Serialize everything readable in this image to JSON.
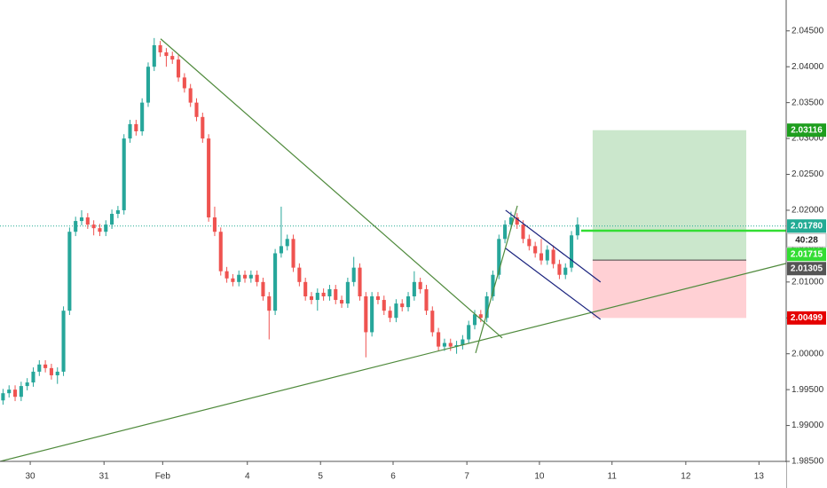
{
  "chart_data": {
    "type": "candlestick",
    "up_color": "#26a69a",
    "down_color": "#ef5350",
    "grid": false,
    "xlim": [
      0,
      130
    ],
    "ylim": [
      1.985,
      2.0493
    ],
    "xticks": [
      {
        "value": 5.0,
        "label": "30"
      },
      {
        "value": 17.2,
        "label": "31"
      },
      {
        "value": 26.9,
        "label": "Feb"
      },
      {
        "value": 40.9,
        "label": "4"
      },
      {
        "value": 53.0,
        "label": "5"
      },
      {
        "value": 65.0,
        "label": "6"
      },
      {
        "value": 77.2,
        "label": "7"
      },
      {
        "value": 89.2,
        "label": "10"
      },
      {
        "value": 101.2,
        "label": "11"
      },
      {
        "value": 113.4,
        "label": "12"
      },
      {
        "value": 125.5,
        "label": "13"
      }
    ],
    "yticks": [
      {
        "value": 2.045,
        "label": "2.04500"
      },
      {
        "value": 2.04,
        "label": "2.04000"
      },
      {
        "value": 2.035,
        "label": "2.03500"
      },
      {
        "value": 2.03,
        "label": "2.03000"
      },
      {
        "value": 2.025,
        "label": "2.02500"
      },
      {
        "value": 2.02,
        "label": "2.02000"
      },
      {
        "value": 2.015,
        "label": "2.01500"
      },
      {
        "value": 2.01,
        "label": "2.01000"
      },
      {
        "value": 2.005,
        "label": "2.00500"
      },
      {
        "value": 2.0,
        "label": "2.00000"
      },
      {
        "value": 1.995,
        "label": "1.99500"
      },
      {
        "value": 1.99,
        "label": "1.99000"
      },
      {
        "value": 1.985,
        "label": "1.98500"
      }
    ],
    "open": [
      1.9935,
      1.9945,
      1.995,
      1.994,
      1.9955,
      1.996,
      1.9975,
      1.9985,
      1.998,
      1.997,
      1.9975,
      2.006,
      2.017,
      2.0185,
      2.019,
      2.018,
      2.0175,
      2.017,
      2.018,
      2.0195,
      2.02,
      2.03,
      2.032,
      2.031,
      2.035,
      2.04,
      2.043,
      2.042,
      2.0415,
      2.041,
      2.0385,
      2.037,
      2.035,
      2.033,
      2.03,
      2.019,
      2.017,
      2.0115,
      2.0105,
      2.01,
      2.011,
      2.0105,
      2.011,
      2.01,
      2.008,
      2.006,
      2.014,
      2.015,
      2.016,
      2.012,
      2.01,
      2.008,
      2.0075,
      2.0085,
      2.008,
      2.009,
      2.0075,
      2.007,
      2.01,
      2.012,
      2.008,
      2.003,
      2.008,
      2.0075,
      2.006,
      2.005,
      2.007,
      2.0065,
      2.008,
      2.01,
      2.009,
      2.006,
      2.003,
      2.001,
      2.0015,
      2.001,
      2.0012,
      2.002,
      2.004,
      2.0055,
      2.005,
      2.008,
      2.011,
      2.016,
      2.018,
      2.019,
      2.018,
      2.016,
      2.015,
      2.014,
      2.013,
      2.0145,
      2.0125,
      2.011,
      2.012,
      2.0165
    ],
    "high": [
      1.9951,
      1.9956,
      1.9956,
      1.9961,
      1.9966,
      1.9981,
      1.9991,
      1.9991,
      1.9986,
      1.9981,
      2.0066,
      2.0176,
      2.0191,
      2.02,
      2.0196,
      2.0186,
      2.0181,
      2.0186,
      2.0201,
      2.0206,
      2.0306,
      2.0326,
      2.0326,
      2.0356,
      2.0406,
      2.044,
      2.0436,
      2.0426,
      2.0421,
      2.0416,
      2.0391,
      2.0376,
      2.0356,
      2.0336,
      2.0306,
      2.0205,
      2.0176,
      2.0121,
      2.0111,
      2.0116,
      2.0116,
      2.0116,
      2.0116,
      2.0106,
      2.0086,
      2.0146,
      2.0205,
      2.0166,
      2.0166,
      2.0126,
      2.0106,
      2.0086,
      2.0091,
      2.0091,
      2.0096,
      2.0096,
      2.0081,
      2.0106,
      2.0135,
      2.0126,
      2.0086,
      2.0086,
      2.0086,
      2.0081,
      2.0066,
      2.0076,
      2.0076,
      2.0086,
      2.0115,
      2.0106,
      2.0096,
      2.0066,
      2.0036,
      2.0021,
      2.0021,
      2.0018,
      2.0026,
      2.0046,
      2.0061,
      2.0061,
      2.0086,
      2.0116,
      2.0166,
      2.0186,
      2.0198,
      2.0196,
      2.0186,
      2.0166,
      2.0156,
      2.016,
      2.0151,
      2.0151,
      2.0131,
      2.0126,
      2.0171,
      2.019
    ],
    "low": [
      1.9929,
      1.9939,
      1.9934,
      1.9934,
      1.9949,
      1.9954,
      1.9969,
      1.9974,
      1.9964,
      1.9958,
      1.9969,
      2.0054,
      2.0164,
      2.0179,
      2.0174,
      2.0165,
      2.0164,
      2.0164,
      2.0174,
      2.0189,
      2.0194,
      2.0294,
      2.0304,
      2.0304,
      2.0344,
      2.0394,
      2.0414,
      2.04,
      2.0404,
      2.0379,
      2.0364,
      2.0344,
      2.0324,
      2.0294,
      2.0184,
      2.0164,
      2.0109,
      2.0099,
      2.0094,
      2.0094,
      2.0099,
      2.0099,
      2.0094,
      2.0074,
      2.002,
      2.0054,
      2.0134,
      2.0144,
      2.0114,
      2.0094,
      2.0074,
      2.0069,
      2.006,
      2.0074,
      2.0074,
      2.0069,
      2.0064,
      2.0064,
      2.0094,
      2.0074,
      1.9995,
      2.0024,
      2.0069,
      2.0054,
      2.0044,
      2.0044,
      2.0059,
      2.0059,
      2.0074,
      2.0084,
      2.0054,
      2.0024,
      2.0004,
      2.0004,
      2.0004,
      2.0,
      2.0006,
      2.0014,
      2.0034,
      2.0044,
      2.0044,
      2.0074,
      2.0104,
      2.0154,
      2.0174,
      2.0174,
      2.0154,
      2.0144,
      2.0134,
      2.0124,
      2.0124,
      2.0119,
      2.0104,
      2.0104,
      2.0114,
      2.0159
    ],
    "close": [
      1.9945,
      1.995,
      1.994,
      1.9955,
      1.996,
      1.9975,
      1.9985,
      1.998,
      1.997,
      1.9975,
      2.006,
      2.017,
      2.0185,
      2.019,
      2.018,
      2.0175,
      2.017,
      2.018,
      2.0195,
      2.02,
      2.03,
      2.032,
      2.031,
      2.035,
      2.04,
      2.043,
      2.042,
      2.0415,
      2.041,
      2.0385,
      2.037,
      2.035,
      2.033,
      2.03,
      2.019,
      2.017,
      2.0115,
      2.0105,
      2.01,
      2.011,
      2.0105,
      2.011,
      2.01,
      2.008,
      2.006,
      2.014,
      2.015,
      2.016,
      2.012,
      2.01,
      2.008,
      2.0075,
      2.0085,
      2.008,
      2.009,
      2.0075,
      2.007,
      2.01,
      2.012,
      2.008,
      2.003,
      2.008,
      2.0075,
      2.006,
      2.005,
      2.007,
      2.0065,
      2.008,
      2.01,
      2.009,
      2.006,
      2.003,
      2.001,
      2.0015,
      2.001,
      2.0012,
      2.002,
      2.004,
      2.0055,
      2.005,
      2.008,
      2.011,
      2.016,
      2.018,
      2.019,
      2.018,
      2.016,
      2.015,
      2.014,
      2.013,
      2.0145,
      2.0125,
      2.011,
      2.012,
      2.0165,
      2.018
    ],
    "last_price": {
      "value": 2.0178,
      "label": "2.01780",
      "color": "#22ab94"
    },
    "countdown": "40:28",
    "alert_line": {
      "value": 2.01715,
      "label": "2.01715",
      "color": "#33dd33",
      "from": 96.1
    },
    "position": {
      "from": 98.0,
      "to": 123.4,
      "target": {
        "value": 2.03116,
        "label": "2.03116",
        "color": "#1e9e1e"
      },
      "entry": {
        "value": 2.01305,
        "label": "2.01305",
        "color": "#555555"
      },
      "stop": {
        "value": 2.00499,
        "label": "2.00499",
        "color": "#e50000"
      }
    },
    "trendlines": [
      {
        "color": "#4f8a3c",
        "x": [
          26.56,
          83.05
        ],
        "y": [
          2.04389,
          2.00219
        ]
      },
      {
        "color": "#4f8a3c",
        "x": [
          0,
          130
        ],
        "y": [
          1.985,
          2.01259
        ]
      },
      {
        "color": "#4f8a3c",
        "x": [
          78.65,
          85.55
        ],
        "y": [
          2.0001,
          2.02063
        ]
      },
      {
        "color": "#1a237e",
        "x": [
          83.6,
          99.3
        ],
        "y": [
          2.02,
          2.00999
        ]
      },
      {
        "color": "#1a237e",
        "x": [
          83.6,
          99.3
        ],
        "y": [
          2.01469,
          2.00479
        ]
      }
    ]
  }
}
